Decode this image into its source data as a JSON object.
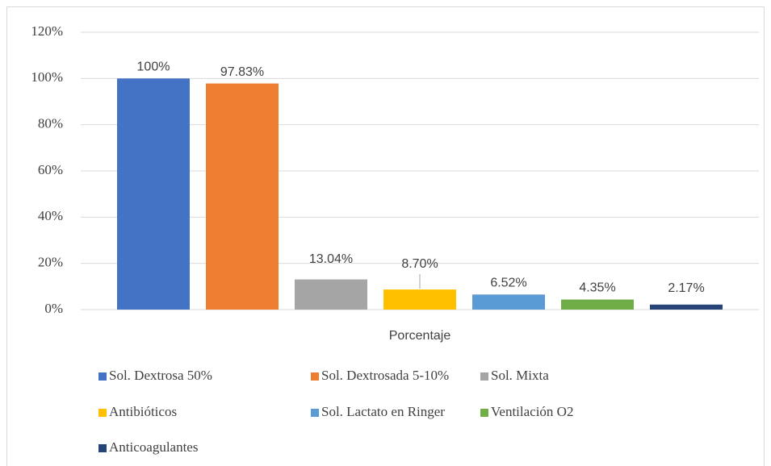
{
  "chart_data": {
    "type": "bar",
    "categories": [
      "Porcentaje"
    ],
    "series": [
      {
        "name": "Sol. Dextrosa 50%",
        "color": "#4472c4",
        "values": [
          100
        ],
        "value_labels": [
          "100%"
        ]
      },
      {
        "name": "Sol. Dextrosada 5-10%",
        "color": "#ed7d31",
        "values": [
          97.83
        ],
        "value_labels": [
          "97.83%"
        ]
      },
      {
        "name": "Sol. Mixta",
        "color": "#a5a5a5",
        "values": [
          13.04
        ],
        "value_labels": [
          "13.04%"
        ]
      },
      {
        "name": "Antibióticos",
        "color": "#ffc000",
        "values": [
          8.7
        ],
        "value_labels": [
          "8.70%"
        ]
      },
      {
        "name": "Sol. Lactato en Ringer",
        "color": "#5b9bd5",
        "values": [
          6.52
        ],
        "value_labels": [
          "6.52%"
        ]
      },
      {
        "name": "Ventilación O2",
        "color": "#70ad47",
        "values": [
          4.35
        ],
        "value_labels": [
          "4.35%"
        ]
      },
      {
        "name": "Anticoagulantes",
        "color": "#264478",
        "values": [
          2.17
        ],
        "value_labels": [
          "2.17%"
        ]
      }
    ],
    "ylim": [
      0,
      120
    ],
    "yticks": [
      {
        "value": 0,
        "label": "0%"
      },
      {
        "value": 20,
        "label": "20%"
      },
      {
        "value": 40,
        "label": "40%"
      },
      {
        "value": 60,
        "label": "60%"
      },
      {
        "value": 80,
        "label": "80%"
      },
      {
        "value": 100,
        "label": "100%"
      },
      {
        "value": 120,
        "label": "120%"
      }
    ],
    "grid": true,
    "legend": "bottom"
  }
}
